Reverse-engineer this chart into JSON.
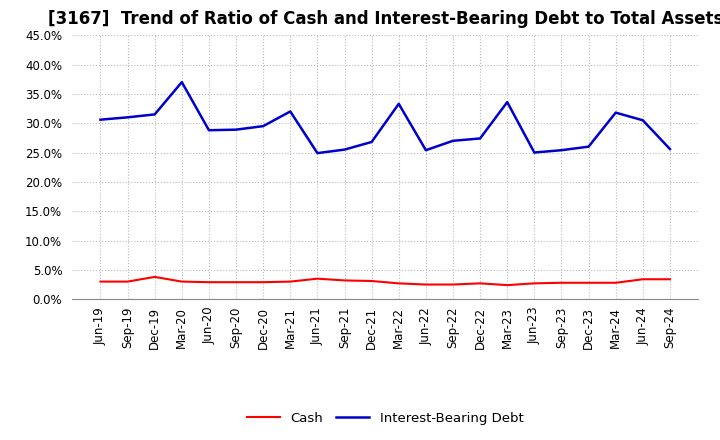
{
  "title": "[3167]  Trend of Ratio of Cash and Interest-Bearing Debt to Total Assets",
  "x_labels": [
    "Jun-19",
    "Sep-19",
    "Dec-19",
    "Mar-20",
    "Jun-20",
    "Sep-20",
    "Dec-20",
    "Mar-21",
    "Jun-21",
    "Sep-21",
    "Dec-21",
    "Mar-22",
    "Jun-22",
    "Sep-22",
    "Dec-22",
    "Mar-23",
    "Jun-23",
    "Sep-23",
    "Dec-23",
    "Mar-24",
    "Jun-24",
    "Sep-24"
  ],
  "cash": [
    0.03,
    0.03,
    0.038,
    0.03,
    0.029,
    0.029,
    0.029,
    0.03,
    0.035,
    0.032,
    0.031,
    0.027,
    0.025,
    0.025,
    0.027,
    0.024,
    0.027,
    0.028,
    0.028,
    0.028,
    0.034,
    0.034
  ],
  "interest_bearing_debt": [
    0.306,
    0.31,
    0.315,
    0.37,
    0.288,
    0.289,
    0.295,
    0.32,
    0.249,
    0.255,
    0.268,
    0.333,
    0.254,
    0.27,
    0.274,
    0.336,
    0.25,
    0.254,
    0.26,
    0.318,
    0.305,
    0.256
  ],
  "cash_color": "#ff0000",
  "debt_color": "#0000cc",
  "background_color": "#ffffff",
  "grid_color": "#bbbbbb",
  "ylim": [
    0.0,
    0.45
  ],
  "yticks": [
    0.0,
    0.05,
    0.1,
    0.15,
    0.2,
    0.25,
    0.3,
    0.35,
    0.4,
    0.45
  ],
  "legend_cash": "Cash",
  "legend_debt": "Interest-Bearing Debt",
  "title_fontsize": 12,
  "axis_fontsize": 8.5,
  "legend_fontsize": 9.5
}
